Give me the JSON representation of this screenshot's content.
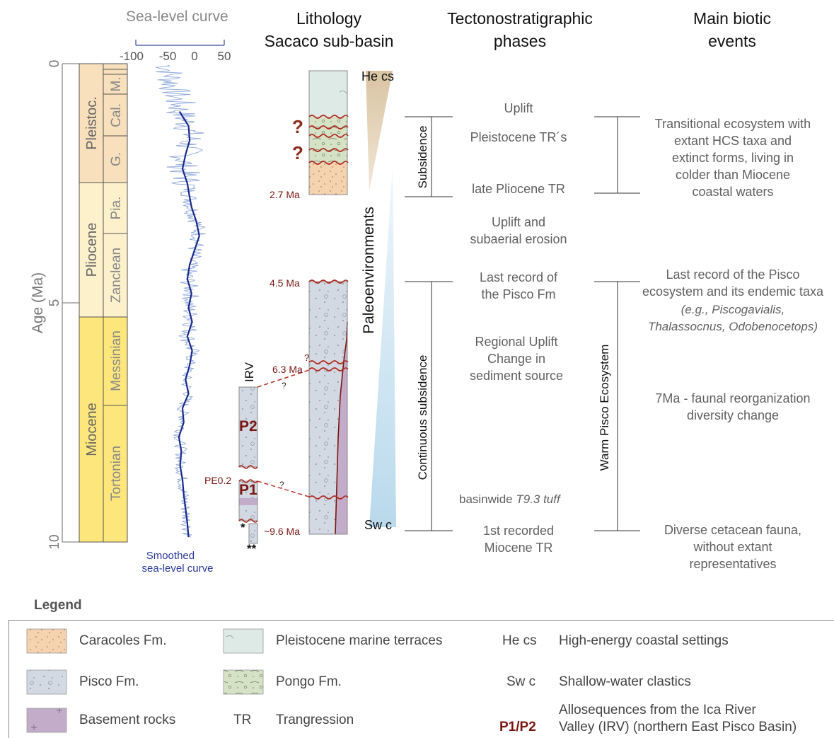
{
  "headers": {
    "sea_level": "Sea-level curve",
    "lithology": "Lithology\nSacaco sub-basin",
    "tectono": "Tectonostratigraphic\nphases",
    "biotic": "Main biotic\nevents"
  },
  "sea_level_axis": {
    "ticks": [
      "-100",
      "-50",
      "0",
      "50"
    ],
    "smoothed_label": "Smoothed\nsea-level curve"
  },
  "age_axis": {
    "label": "Age (Ma)",
    "ticks": [
      "0",
      "5",
      "10"
    ]
  },
  "chronostrat": {
    "epochs": [
      "Pleistoc.",
      "Pliocene",
      "Miocene"
    ],
    "stages": [
      "M.",
      "Cal.",
      "G.",
      "Pia.",
      "Zanclean",
      "Messinian",
      "Tortonian"
    ]
  },
  "lithology": {
    "he_cs": "He cs",
    "sw_c": "Sw c",
    "q1": "?",
    "q2": "?",
    "age_27": "2.7 Ma",
    "age_45": "4.5 Ma",
    "age_63": "6.3 Ma",
    "age_96": "~9.6 Ma",
    "q_small1": "?",
    "q_small2": "?",
    "q_small3": "?",
    "irv": "IRV",
    "p2": "P2",
    "p1": "P1",
    "pe02": "PE0.2",
    "star1": "*",
    "star2": "**",
    "paleoenv": "Paleoenvironments"
  },
  "tectono": {
    "subsidence": "Subsidence",
    "continuous": "Continuous subsidence",
    "uplift": "Uplift",
    "pleistocene_tr": "Pleistocene TR´s",
    "late_pliocene_tr": "late Pliocene TR",
    "uplift_erosion": "Uplift and\nsubaerial erosion",
    "last_record": "Last record of\nthe Pisco Fm",
    "regional_uplift": "Regional Uplift\nChange in\nsediment source",
    "basinwide_pre": "basinwide ",
    "basinwide_it": "T9.3 tuff",
    "first_tr": "1st recorded\nMiocene TR"
  },
  "biotic": {
    "warm": "Warm Pisco Ecosystem",
    "transitional": "Transitional ecosystem with\nextant HCS taxa and\nextinct forms, living in\ncolder than Miocene\ncoastal waters",
    "last_record_1": "Last record of the Pisco\necosystem and its endemic taxa",
    "last_record_2": "(e.g., Piscogavialis,\nThalassocnus, Odobenocetops)",
    "faunal": "7Ma - faunal reorganization\ndiversity change",
    "diverse": "Diverse cetacean fauna,\nwithout extant\nrepresentatives"
  },
  "legend": {
    "title": "Legend",
    "caracoles": "Caracoles Fm.",
    "pisco": "Pisco Fm.",
    "basement": "Basement rocks",
    "pleistocene_terraces": "Pleistocene marine terraces",
    "pongo": "Pongo Fm.",
    "tr_abbr": "TR",
    "tr": "Trangression",
    "hecs_abbr": "He cs",
    "hecs": "High-energy coastal settings",
    "swc_abbr": "Sw c",
    "swc": "Shallow-water clastics",
    "p1p2_abbr": "P1/P2",
    "p1p2": "Allosequences from the Ica River\nValley (IRV) (northern East Pisco Basin)"
  },
  "colors": {
    "pleistocene_fill": "#f8e0bc",
    "pliocene_fill": "#fdf1cc",
    "miocene_fill": "#fde77c",
    "pisco_fill": "#d2d9e2",
    "caracoles_fill": "#f5d3ae",
    "terraces_fill": "#deeae6",
    "pongo_fill": "#d6e2c6",
    "basement_fill": "#c3acc9",
    "sea_level_raw": "#8fa8dc",
    "sea_level_smooth": "#1a2a8a",
    "unconformity": "#b0281e",
    "dark_red_text": "#7a1712"
  }
}
